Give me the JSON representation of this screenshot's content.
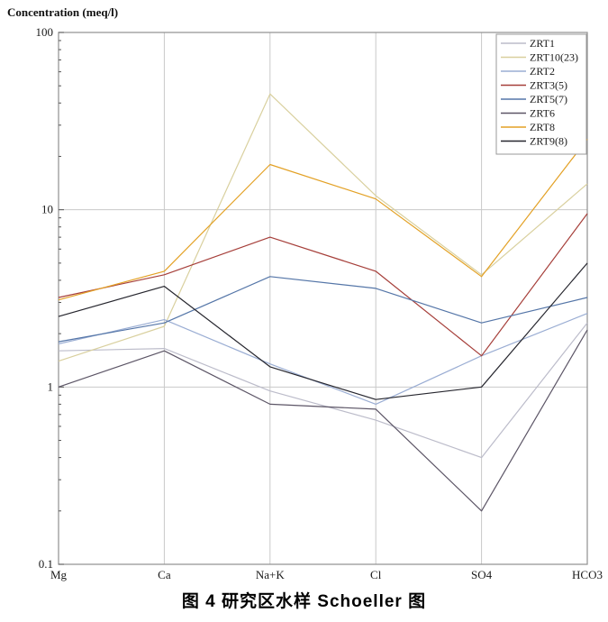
{
  "chart_data": {
    "type": "line",
    "title": "",
    "ylabel": "Concentration (meq/l)",
    "xlabel": "",
    "yscale": "log",
    "ylim": [
      0.1,
      100
    ],
    "ytick_labels": [
      "100",
      "10",
      "1",
      "0.1"
    ],
    "ytick_values": [
      100,
      10,
      1,
      0.1
    ],
    "grid": true,
    "legend_position": "top-right",
    "categories": [
      "Mg",
      "Ca",
      "Na+K",
      "Cl",
      "SO4",
      "HCO3"
    ],
    "series": [
      {
        "name": "ZRT1",
        "color": "#bcbcca",
        "values": [
          1.6,
          1.65,
          0.95,
          0.65,
          0.4,
          2.3
        ]
      },
      {
        "name": "ZRT10(23)",
        "color": "#d9d09e",
        "values": [
          1.4,
          2.2,
          45,
          12,
          4.3,
          14
        ]
      },
      {
        "name": "ZRT2",
        "color": "#9aadd3",
        "values": [
          1.75,
          2.4,
          1.35,
          0.8,
          1.5,
          2.6
        ]
      },
      {
        "name": "ZRT3(5)",
        "color": "#a63f3a",
        "values": [
          3.2,
          4.3,
          7.0,
          4.5,
          1.5,
          9.5
        ]
      },
      {
        "name": "ZRT5(7)",
        "color": "#5576a8",
        "values": [
          1.8,
          2.3,
          4.2,
          3.6,
          2.3,
          3.2
        ]
      },
      {
        "name": "ZRT6",
        "color": "#5c5566",
        "values": [
          1.0,
          1.6,
          0.8,
          0.75,
          0.2,
          2.1
        ]
      },
      {
        "name": "ZRT8",
        "color": "#e3a125",
        "values": [
          3.1,
          4.5,
          18,
          11.5,
          4.2,
          25
        ]
      },
      {
        "name": "ZRT9(8)",
        "color": "#26262e",
        "values": [
          2.5,
          3.7,
          1.3,
          0.85,
          1.0,
          5.0
        ]
      }
    ]
  },
  "caption": {
    "text": "图 4  研究区水样 Schoeller 图"
  },
  "colors": {
    "background": "#ffffff",
    "grid": "#c9c9c9",
    "axis_box": "#8f8f8f",
    "tick": "#555555",
    "text": "#1a1a1a",
    "legend_border": "#9a9a9a",
    "legend_bg": "#ffffff"
  }
}
